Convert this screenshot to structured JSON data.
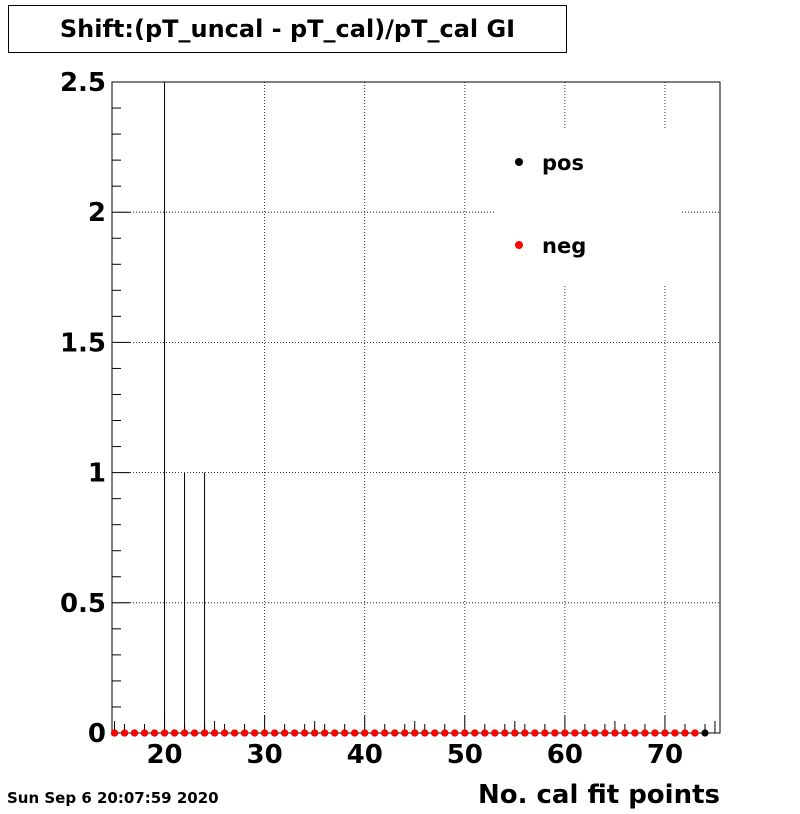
{
  "chart_data": {
    "type": "scatter",
    "title": "Shift:(pT_uncal - pT_cal)/pT_cal GI",
    "xlabel": "No. cal fit points",
    "ylabel": "",
    "xlim": [
      14.75,
      75.5
    ],
    "ylim": [
      0,
      2.5
    ],
    "x_ticks": [
      20,
      30,
      40,
      50,
      60,
      70
    ],
    "y_ticks": [
      0,
      0.5,
      1,
      1.5,
      2,
      2.5
    ],
    "x_tick_labels": [
      "20",
      "30",
      "40",
      "50",
      "60",
      "70"
    ],
    "y_tick_labels": [
      "0",
      "0.5",
      "1",
      "1.5",
      "2",
      "2.5"
    ],
    "grid": true,
    "legend_position": "top-right",
    "series": [
      {
        "name": "pos",
        "color": "#000000",
        "x": [
          15,
          16,
          17,
          18,
          19,
          20,
          21,
          22,
          23,
          24,
          25,
          26,
          27,
          28,
          29,
          30,
          31,
          32,
          33,
          34,
          35,
          36,
          37,
          38,
          39,
          40,
          41,
          42,
          43,
          44,
          45,
          46,
          47,
          48,
          49,
          50,
          51,
          52,
          53,
          54,
          55,
          56,
          57,
          58,
          59,
          60,
          61,
          62,
          63,
          64,
          65,
          66,
          67,
          68,
          69,
          70,
          71,
          72,
          73,
          74
        ],
        "y": [
          0,
          0,
          0,
          0,
          0,
          0,
          0,
          0,
          0,
          0,
          0,
          0,
          0,
          0,
          0,
          0,
          0,
          0,
          0,
          0,
          0,
          0,
          0,
          0,
          0,
          0,
          0,
          0,
          0,
          0,
          0,
          0,
          0,
          0,
          0,
          0,
          0,
          0,
          0,
          0,
          0,
          0,
          0,
          0,
          0,
          0,
          0,
          0,
          0,
          0,
          0,
          0,
          0,
          0,
          0,
          0,
          0,
          0,
          0,
          0
        ],
        "error_bars": [
          {
            "x": 20,
            "high": 2.5
          },
          {
            "x": 22,
            "high": 1.0
          },
          {
            "x": 24,
            "high": 1.0
          }
        ]
      },
      {
        "name": "neg",
        "color": "#ff0000",
        "x": [
          15,
          16,
          17,
          18,
          19,
          20,
          21,
          22,
          23,
          24,
          25,
          26,
          27,
          28,
          29,
          30,
          31,
          32,
          33,
          34,
          35,
          36,
          37,
          38,
          39,
          40,
          41,
          42,
          43,
          44,
          45,
          46,
          47,
          48,
          49,
          50,
          51,
          52,
          53,
          54,
          55,
          56,
          57,
          58,
          59,
          60,
          61,
          62,
          63,
          64,
          65,
          66,
          67,
          68,
          69,
          70,
          71,
          72,
          73
        ],
        "y": [
          0,
          0,
          0,
          0,
          0,
          0,
          0,
          0,
          0,
          0,
          0,
          0,
          0,
          0,
          0,
          0,
          0,
          0,
          0,
          0,
          0,
          0,
          0,
          0,
          0,
          0,
          0,
          0,
          0,
          0,
          0,
          0,
          0,
          0,
          0,
          0,
          0,
          0,
          0,
          0,
          0,
          0,
          0,
          0,
          0,
          0,
          0,
          0,
          0,
          0,
          0,
          0,
          0,
          0,
          0,
          0,
          0,
          0,
          0
        ]
      }
    ]
  },
  "footer": {
    "date": "Sun Sep  6 20:07:59 2020"
  }
}
